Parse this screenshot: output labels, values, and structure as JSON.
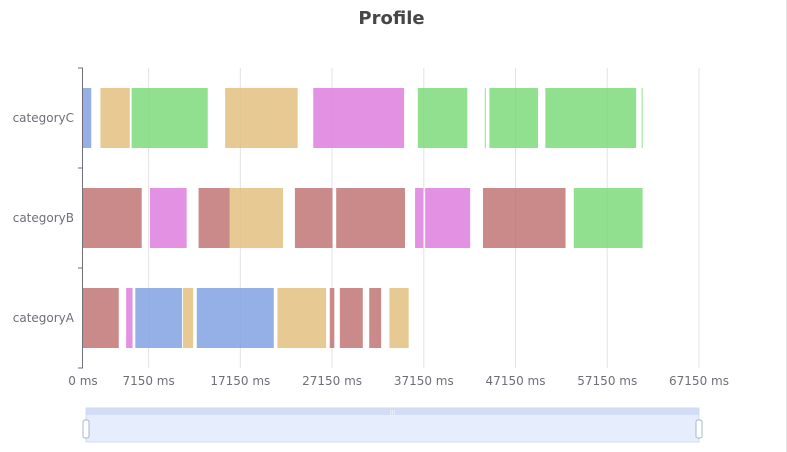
{
  "chart_data": {
    "type": "bar",
    "title": "Profile",
    "categories": [
      "categoryA",
      "categoryB",
      "categoryC"
    ],
    "x_unit": "ms",
    "xlim": [
      0,
      67150
    ],
    "x_ticks": [
      0,
      7150,
      17150,
      27150,
      37150,
      47150,
      57150,
      67150
    ],
    "x_tick_labels": [
      "0 ms",
      "7150 ms",
      "17150 ms",
      "27150 ms",
      "37150 ms",
      "47150 ms",
      "57150 ms",
      "67150 ms"
    ],
    "grid": true,
    "legend": "none",
    "colors": {
      "blue": "#7b9ce1",
      "tan": "#e0bc78",
      "green": "#75d874",
      "red": "#bd6d6c",
      "pink": "#dc77dc"
    },
    "bars": [
      {
        "category": "categoryA",
        "start": 0,
        "end": 3900,
        "color": "red"
      },
      {
        "category": "categoryA",
        "start": 4700,
        "end": 5400,
        "color": "pink"
      },
      {
        "category": "categoryA",
        "start": 5700,
        "end": 10800,
        "color": "blue"
      },
      {
        "category": "categoryA",
        "start": 10900,
        "end": 12000,
        "color": "tan"
      },
      {
        "category": "categoryA",
        "start": 12400,
        "end": 20800,
        "color": "blue"
      },
      {
        "category": "categoryA",
        "start": 21200,
        "end": 26500,
        "color": "tan"
      },
      {
        "category": "categoryA",
        "start": 26900,
        "end": 27400,
        "color": "red"
      },
      {
        "category": "categoryA",
        "start": 28000,
        "end": 30500,
        "color": "red"
      },
      {
        "category": "categoryA",
        "start": 31200,
        "end": 32500,
        "color": "red"
      },
      {
        "category": "categoryA",
        "start": 33400,
        "end": 35500,
        "color": "tan"
      },
      {
        "category": "categoryB",
        "start": 0,
        "end": 6400,
        "color": "red"
      },
      {
        "category": "categoryB",
        "start": 7300,
        "end": 11300,
        "color": "pink"
      },
      {
        "category": "categoryB",
        "start": 12600,
        "end": 16000,
        "color": "red"
      },
      {
        "category": "categoryB",
        "start": 16000,
        "end": 21800,
        "color": "tan"
      },
      {
        "category": "categoryB",
        "start": 23100,
        "end": 27200,
        "color": "red"
      },
      {
        "category": "categoryB",
        "start": 27600,
        "end": 35100,
        "color": "red"
      },
      {
        "category": "categoryB",
        "start": 36200,
        "end": 37100,
        "color": "pink"
      },
      {
        "category": "categoryB",
        "start": 37300,
        "end": 42200,
        "color": "pink"
      },
      {
        "category": "categoryB",
        "start": 43600,
        "end": 52600,
        "color": "red"
      },
      {
        "category": "categoryB",
        "start": 53500,
        "end": 61000,
        "color": "green"
      },
      {
        "category": "categoryC",
        "start": 0,
        "end": 900,
        "color": "blue"
      },
      {
        "category": "categoryC",
        "start": 1900,
        "end": 5100,
        "color": "tan"
      },
      {
        "category": "categoryC",
        "start": 5300,
        "end": 13600,
        "color": "green"
      },
      {
        "category": "categoryC",
        "start": 15500,
        "end": 23400,
        "color": "tan"
      },
      {
        "category": "categoryC",
        "start": 25100,
        "end": 35000,
        "color": "pink"
      },
      {
        "category": "categoryC",
        "start": 36500,
        "end": 41900,
        "color": "green"
      },
      {
        "category": "categoryC",
        "start": 43800,
        "end": 43900,
        "color": "green"
      },
      {
        "category": "categoryC",
        "start": 44300,
        "end": 49600,
        "color": "green"
      },
      {
        "category": "categoryC",
        "start": 50400,
        "end": 60300,
        "color": "green"
      },
      {
        "category": "categoryC",
        "start": 60900,
        "end": 61000,
        "color": "green"
      }
    ],
    "zoom_range": [
      0,
      100
    ]
  }
}
